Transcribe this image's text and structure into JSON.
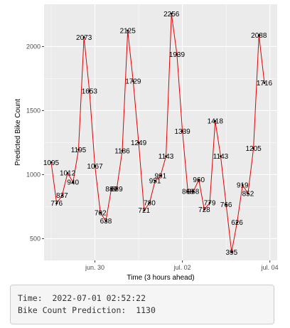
{
  "chart_data": {
    "type": "line",
    "xlabel": "Time (3 hours ahead)",
    "ylabel": "Predicted Bike Count",
    "x_ticks": [
      "jun. 30",
      "jul. 02",
      "jul. 04"
    ],
    "y_ticks": [
      500,
      1000,
      1500,
      2000
    ],
    "ylim": [
      330,
      2330
    ],
    "grid": true,
    "line_color": "#e00000",
    "panel_color": "#ebebeb",
    "x_start": "2022-06-29 00:00",
    "x_step_hours": 3,
    "values": [
      1095,
      776,
      837,
      1012,
      940,
      1195,
      2073,
      1653,
      1067,
      702,
      638,
      889,
      889,
      1186,
      2125,
      1729,
      1249,
      721,
      780,
      951,
      991,
      1143,
      2256,
      1939,
      1339,
      868,
      868,
      960,
      728,
      779,
      1418,
      1143,
      766,
      395,
      626,
      919,
      852,
      1205,
      2088,
      1716
    ]
  },
  "info": {
    "time_label": "Time:",
    "time_value": "2022-07-01 02:52:22",
    "prediction_label": "Bike Count Prediction:",
    "prediction_value": "1130"
  }
}
